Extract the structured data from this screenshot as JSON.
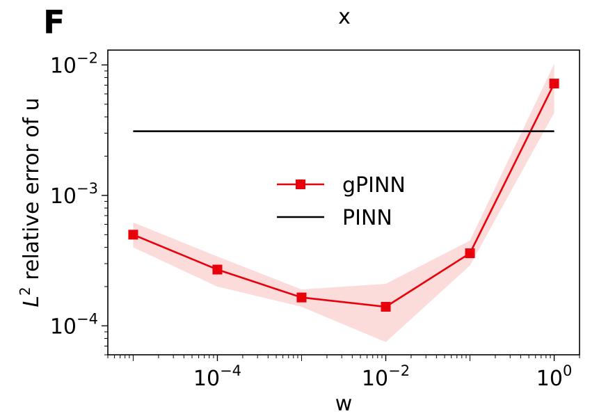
{
  "panel_label": "F",
  "chart_data": {
    "type": "line",
    "title": "x",
    "xlabel": "w",
    "ylabel_base": "L",
    "ylabel_sup": "2",
    "ylabel_rest": " relative error of u",
    "xscale": "log",
    "yscale": "log",
    "xlim": [
      5e-06,
      2
    ],
    "ylim": [
      6e-05,
      0.013
    ],
    "grid": false,
    "legend_position": "center",
    "xticks": [
      {
        "value": 0.0001,
        "base": "10",
        "exp": "−4"
      },
      {
        "value": 0.01,
        "base": "10",
        "exp": "−2"
      },
      {
        "value": 1,
        "base": "10",
        "exp": "0"
      }
    ],
    "yticks": [
      {
        "value": 0.0001,
        "base": "10",
        "exp": "−4"
      },
      {
        "value": 0.001,
        "base": "10",
        "exp": "−3"
      },
      {
        "value": 0.01,
        "base": "10",
        "exp": "−2"
      }
    ],
    "series": [
      {
        "name": "gPINN",
        "color": "#e8000b",
        "marker": "square",
        "band_color": "#fbd5d5",
        "x": [
          1e-05,
          0.0001,
          0.001,
          0.01,
          0.1,
          1
        ],
        "y": [
          0.0005,
          0.00027,
          0.000165,
          0.00014,
          0.00036,
          0.0072
        ],
        "band_low": [
          0.0004,
          0.0002,
          0.00014,
          7.5e-05,
          0.00029,
          0.0043
        ],
        "band_high": [
          0.00062,
          0.00034,
          0.00019,
          0.00021,
          0.00045,
          0.0102
        ]
      },
      {
        "name": "PINN",
        "color": "#000000",
        "marker": "none",
        "x": [
          1e-05,
          1
        ],
        "y": [
          0.0031,
          0.0031
        ]
      }
    ]
  }
}
